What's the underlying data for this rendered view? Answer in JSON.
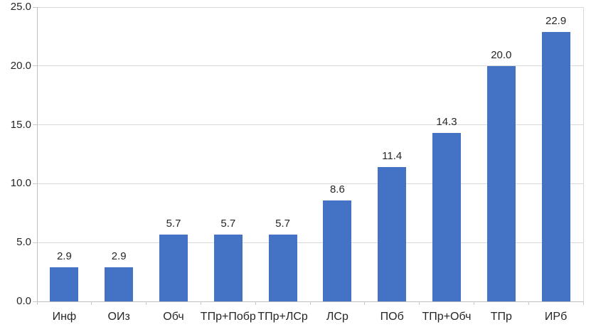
{
  "chart_data": {
    "type": "bar",
    "categories": [
      "Инф",
      "ОИз",
      "Обч",
      "ТПр+Побр",
      "ТПр+ЛСр",
      "ЛСр",
      "ПОб",
      "ТПр+Обч",
      "ТПр",
      "ИРб"
    ],
    "values": [
      2.9,
      2.9,
      5.7,
      5.7,
      5.7,
      8.6,
      11.4,
      14.3,
      20.0,
      22.9
    ],
    "data_labels": [
      "2.9",
      "2.9",
      "5.7",
      "5.7",
      "5.7",
      "8.6",
      "11.4",
      "14.3",
      "20.0",
      "22.9"
    ],
    "title": "",
    "xlabel": "",
    "ylabel": "",
    "ylim": [
      0,
      25
    ],
    "ytick_step": 5,
    "ytick_labels": [
      "0.0",
      "5.0",
      "10.0",
      "15.0",
      "20.0",
      "25.0"
    ],
    "grid": true,
    "legend": false,
    "bar_color": "#4472c4",
    "gridline_color": "#d9d9d9",
    "axis_color": "#bfbfbf",
    "tick_color": "#c9c9c9",
    "label_color": "#262626",
    "background_color": "#ffffff"
  }
}
